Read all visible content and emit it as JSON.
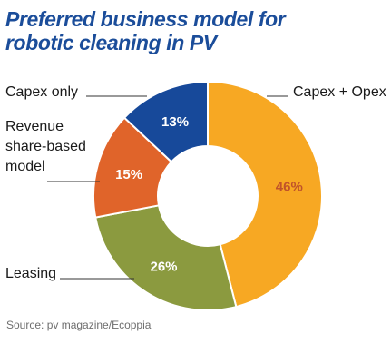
{
  "chart_data": {
    "type": "pie",
    "title": "Preferred business model for robotic cleaning in PV",
    "title_lines": [
      "Preferred business model for",
      "robotic cleaning in PV"
    ],
    "source": "Source: pv magazine/Ecoppia",
    "unit": "%",
    "donut": true,
    "slices": [
      {
        "label": "Capex + Opex",
        "label_lines": [
          "Capex + Opex"
        ],
        "value": 46,
        "value_label": "46%",
        "color": "#f7a823",
        "value_color": "#c0532a"
      },
      {
        "label": "Leasing",
        "label_lines": [
          "Leasing"
        ],
        "value": 26,
        "value_label": "26%",
        "color": "#8b9a3f",
        "value_color": "#ffffff"
      },
      {
        "label": "Revenue share-based model",
        "label_lines": [
          "Revenue",
          "share-based",
          "model"
        ],
        "value": 15,
        "value_label": "15%",
        "color": "#e0642a",
        "value_color": "#ffffff"
      },
      {
        "label": "Capex only",
        "label_lines": [
          "Capex only"
        ],
        "value": 13,
        "value_label": "13%",
        "color": "#17499a",
        "value_color": "#ffffff"
      }
    ]
  },
  "colors": {
    "title": "#1b4d9a",
    "source": "#6e6e6e",
    "leader": "#333333"
  }
}
